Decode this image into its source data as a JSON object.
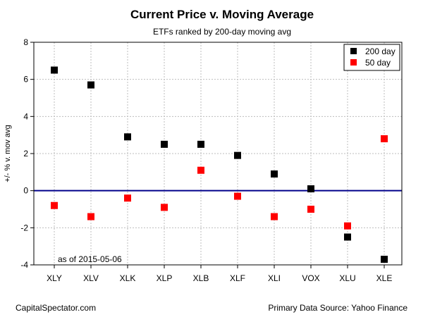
{
  "chart_data": {
    "type": "scatter",
    "title": "Current Price v. Moving Average",
    "subtitle": "ETFs ranked by 200-day moving avg",
    "xlabel": "",
    "ylabel": "+/- % v. mov avg",
    "categories": [
      "XLY",
      "XLV",
      "XLK",
      "XLP",
      "XLB",
      "XLF",
      "XLI",
      "VOX",
      "XLU",
      "XLE"
    ],
    "series": [
      {
        "name": "200 day",
        "color": "#000000",
        "values": [
          6.5,
          5.7,
          2.9,
          2.5,
          2.5,
          1.9,
          0.9,
          0.1,
          -2.5,
          -3.7
        ]
      },
      {
        "name": "50 day",
        "color": "#ff0000",
        "values": [
          -0.8,
          -1.4,
          -0.4,
          -0.9,
          1.1,
          -0.3,
          -1.4,
          -1.0,
          -1.9,
          2.8
        ]
      }
    ],
    "ylim": [
      -4,
      8
    ],
    "yticks": [
      -4,
      -2,
      0,
      2,
      4,
      6,
      8
    ],
    "grid": true,
    "zero_line_color": "#00008b",
    "legend_position": "top-right",
    "annotation": "as of  2015-05-06"
  },
  "footer": {
    "left": "CapitalSpectator.com",
    "right": "Primary Data Source: Yahoo Finance"
  }
}
